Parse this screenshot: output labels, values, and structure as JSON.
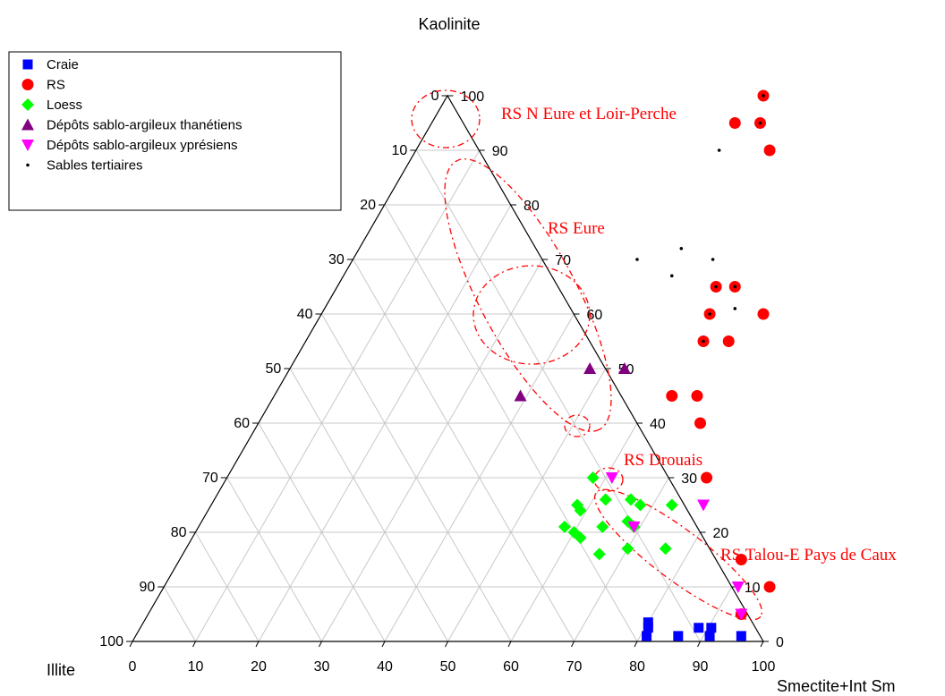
{
  "chart_data": {
    "type": "ternary-scatter",
    "axes": {
      "top": "Kaolinite",
      "left": "Illite",
      "right": "Smectite+Int Sm"
    },
    "tick_values": [
      0,
      10,
      20,
      30,
      40,
      50,
      60,
      70,
      80,
      90,
      100
    ],
    "grid": true,
    "legend_position": "top-left",
    "series": [
      {
        "name": "Craie",
        "marker": "square",
        "color": "#0000ff",
        "points": [
          [
            80,
            3.5
          ],
          [
            80.5,
            2.5
          ],
          [
            81,
            1
          ],
          [
            86,
            1
          ],
          [
            88.5,
            2.5
          ],
          [
            90.5,
            2.5
          ],
          [
            91,
            1
          ],
          [
            96,
            1
          ]
        ]
      },
      {
        "name": "RS",
        "marker": "circle",
        "color": "#ff0000",
        "points": [
          [
            50,
            100
          ],
          [
            48,
            95
          ],
          [
            52,
            95
          ],
          [
            56,
            90
          ],
          [
            60,
            65
          ],
          [
            63,
            65
          ],
          [
            61.5,
            60
          ],
          [
            70,
            60
          ],
          [
            63,
            55
          ],
          [
            67,
            55
          ],
          [
            63,
            45
          ],
          [
            67,
            45
          ],
          [
            70,
            40
          ],
          [
            76,
            30
          ],
          [
            89,
            15
          ],
          [
            96,
            10
          ],
          [
            94,
            5
          ]
        ]
      },
      {
        "name": "Loess",
        "marker": "diamond",
        "color": "#00ff00",
        "points": [
          [
            58,
            30
          ],
          [
            62,
            26
          ],
          [
            58,
            25
          ],
          [
            59,
            24
          ],
          [
            58,
            21
          ],
          [
            60,
            20
          ],
          [
            61.5,
            19
          ],
          [
            64,
            21
          ],
          [
            66,
            26
          ],
          [
            68,
            25
          ],
          [
            67.5,
            22
          ],
          [
            69,
            21
          ],
          [
            66,
            16
          ],
          [
            70,
            17
          ],
          [
            73,
            25
          ],
          [
            76,
            17
          ]
        ]
      },
      {
        "name": "Dépôts sablo-argileux thanétiens",
        "marker": "triangle-up",
        "color": "#800080",
        "points": [
          [
            47.5,
            50
          ],
          [
            53,
            50
          ],
          [
            39,
            45
          ]
        ]
      },
      {
        "name": "Dépôts sablo-argileux yprésiens",
        "marker": "triangle-down",
        "color": "#ff00ff",
        "points": [
          [
            61,
            30
          ],
          [
            69,
            21
          ],
          [
            78,
            25
          ],
          [
            91,
            10
          ],
          [
            94,
            5
          ]
        ]
      },
      {
        "name": "Sables tertiaires",
        "marker": "dot",
        "color": "#000000",
        "points": [
          [
            50,
            100
          ],
          [
            52,
            95
          ],
          [
            48,
            90
          ],
          [
            45,
            70
          ],
          [
            51,
            72
          ],
          [
            52,
            67
          ],
          [
            57,
            70
          ],
          [
            60,
            65
          ],
          [
            63,
            65
          ],
          [
            61.5,
            60
          ],
          [
            65,
            61
          ],
          [
            63,
            55
          ]
        ]
      }
    ],
    "annotations": [
      {
        "text": "RS N Eure et Loir-Perche"
      },
      {
        "text": "RS Eure"
      },
      {
        "text": "RS Drouais"
      },
      {
        "text": "RS Talou-E Pays de Caux"
      }
    ]
  }
}
